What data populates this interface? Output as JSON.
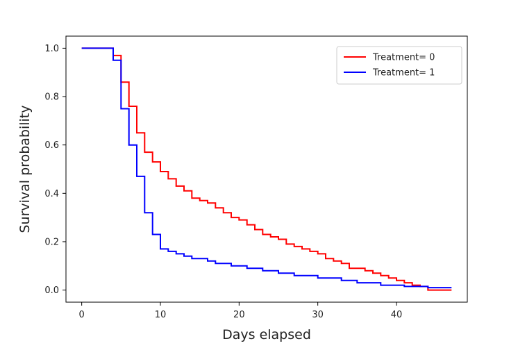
{
  "chart_data": {
    "type": "line",
    "step": true,
    "title": "",
    "xlabel": "Days elapsed",
    "ylabel": "Survival probability",
    "xlim": [
      -2,
      49
    ],
    "ylim": [
      -0.05,
      1.05
    ],
    "xticks": [
      0,
      10,
      20,
      30,
      40
    ],
    "yticks": [
      0.0,
      0.2,
      0.4,
      0.6,
      0.8,
      1.0
    ],
    "xtick_labels": [
      "0",
      "10",
      "20",
      "30",
      "40"
    ],
    "ytick_labels": [
      "0.0",
      "0.2",
      "0.4",
      "0.6",
      "0.8",
      "1.0"
    ],
    "grid": false,
    "legend_position": "top-right",
    "series": [
      {
        "name": "Treatment= 0",
        "color": "#ff0000",
        "x": [
          0,
          4,
          5,
          6,
          7,
          8,
          9,
          10,
          11,
          12,
          13,
          14,
          15,
          16,
          17,
          18,
          19,
          20,
          21,
          22,
          23,
          24,
          25,
          26,
          27,
          28,
          29,
          30,
          31,
          32,
          33,
          34,
          36,
          37,
          38,
          39,
          40,
          41,
          42,
          43,
          44,
          46,
          47
        ],
        "y": [
          1.0,
          0.97,
          0.86,
          0.76,
          0.65,
          0.57,
          0.53,
          0.49,
          0.46,
          0.43,
          0.41,
          0.38,
          0.37,
          0.36,
          0.34,
          0.32,
          0.3,
          0.29,
          0.27,
          0.25,
          0.23,
          0.22,
          0.21,
          0.19,
          0.18,
          0.17,
          0.16,
          0.15,
          0.13,
          0.12,
          0.11,
          0.09,
          0.08,
          0.07,
          0.06,
          0.05,
          0.04,
          0.03,
          0.02,
          0.015,
          0.0,
          0.0,
          0.0
        ]
      },
      {
        "name": "Treatment= 1",
        "color": "#0000ff",
        "x": [
          0,
          4,
          5,
          6,
          7,
          8,
          9,
          10,
          11,
          12,
          13,
          14,
          16,
          17,
          19,
          21,
          23,
          25,
          27,
          30,
          33,
          35,
          38,
          41,
          44,
          47
        ],
        "y": [
          1.0,
          0.95,
          0.75,
          0.6,
          0.47,
          0.32,
          0.23,
          0.17,
          0.16,
          0.15,
          0.14,
          0.13,
          0.12,
          0.11,
          0.1,
          0.09,
          0.08,
          0.07,
          0.06,
          0.05,
          0.04,
          0.03,
          0.02,
          0.015,
          0.01,
          0.01
        ]
      }
    ]
  }
}
